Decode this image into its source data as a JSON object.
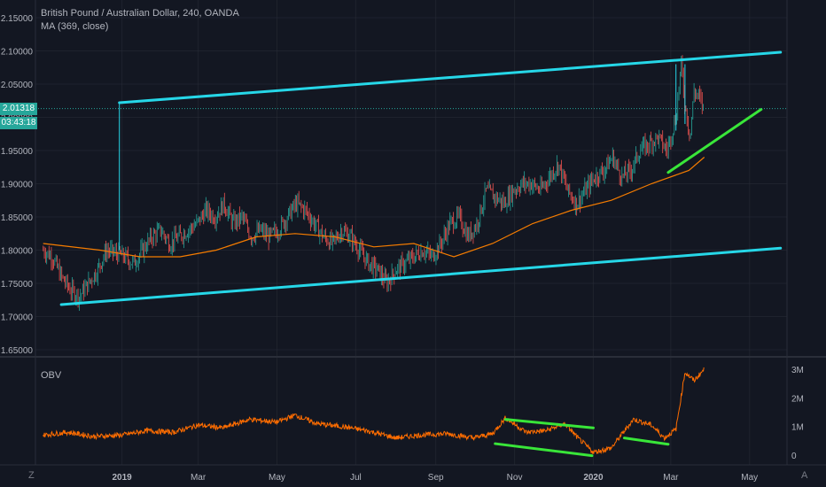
{
  "header": {
    "symbol_line": "British Pound / Australian Dollar, 240, OANDA",
    "indicator_line": "MA (369, close)",
    "obv_label": "OBV"
  },
  "badges": {
    "last_price": "2.01318",
    "countdown": "03:43:18"
  },
  "corners": {
    "left": "Z",
    "right": "A"
  },
  "colors": {
    "background": "#131722",
    "grid": "#2a2e39",
    "candle_up": "#26a69a",
    "candle_down": "#ef5350",
    "ma": "#f57c00",
    "obv": "#ff6d00",
    "channel": "#26d7e8",
    "trend": "#39e639",
    "axis_text": "#b2b5be"
  },
  "chart_data": [
    {
      "type": "candlestick",
      "title": "British Pound / Australian Dollar, 240, OANDA",
      "price_axis_ticks": [
        "2.15000",
        "2.10000",
        "2.05000",
        "2.00000",
        "1.95000",
        "1.90000",
        "1.85000",
        "1.80000",
        "1.75000",
        "1.70000",
        "1.65000"
      ],
      "ylim": [
        1.64,
        2.165
      ],
      "time_axis_ticks": [
        "2019",
        "Mar",
        "May",
        "Jul",
        "Sep",
        "Nov",
        "2020",
        "Mar",
        "May"
      ],
      "close_path": {
        "dates": [
          "2018-11-01",
          "2018-11-08",
          "2018-11-15",
          "2018-11-22",
          "2018-11-29",
          "2018-12-06",
          "2018-12-13",
          "2018-12-20",
          "2019-01-03",
          "2019-01-10",
          "2019-01-17",
          "2019-01-24",
          "2019-01-31",
          "2019-02-07",
          "2019-02-14",
          "2019-02-21",
          "2019-02-28",
          "2019-03-07",
          "2019-03-14",
          "2019-03-21",
          "2019-03-28",
          "2019-04-04",
          "2019-04-11",
          "2019-04-18",
          "2019-04-25",
          "2019-05-02",
          "2019-05-09",
          "2019-05-16",
          "2019-05-23",
          "2019-05-30",
          "2019-06-06",
          "2019-06-13",
          "2019-06-20",
          "2019-06-27",
          "2019-07-04",
          "2019-07-11",
          "2019-07-18",
          "2019-07-25",
          "2019-08-01",
          "2019-08-08",
          "2019-08-15",
          "2019-08-22",
          "2019-08-29",
          "2019-09-05",
          "2019-09-12",
          "2019-09-19",
          "2019-09-26",
          "2019-10-03",
          "2019-10-10",
          "2019-10-17",
          "2019-10-24",
          "2019-10-31",
          "2019-11-07",
          "2019-11-14",
          "2019-11-21",
          "2019-11-28",
          "2019-12-05",
          "2019-12-12",
          "2019-12-19",
          "2019-12-26",
          "2020-01-02",
          "2020-01-09",
          "2020-01-16",
          "2020-01-23",
          "2020-01-30",
          "2020-02-06",
          "2020-02-13",
          "2020-02-20",
          "2020-02-27",
          "2020-03-05",
          "2020-03-09",
          "2020-03-12",
          "2020-03-16",
          "2020-03-19",
          "2020-03-23",
          "2020-03-27"
        ],
        "close": [
          1.8,
          1.79,
          1.76,
          1.74,
          1.73,
          1.75,
          1.77,
          1.8,
          1.79,
          1.78,
          1.8,
          1.82,
          1.83,
          1.81,
          1.82,
          1.83,
          1.84,
          1.86,
          1.85,
          1.87,
          1.84,
          1.85,
          1.82,
          1.83,
          1.82,
          1.83,
          1.85,
          1.87,
          1.86,
          1.84,
          1.82,
          1.81,
          1.83,
          1.82,
          1.8,
          1.78,
          1.77,
          1.75,
          1.77,
          1.78,
          1.79,
          1.8,
          1.79,
          1.81,
          1.84,
          1.85,
          1.82,
          1.84,
          1.89,
          1.88,
          1.87,
          1.89,
          1.9,
          1.9,
          1.89,
          1.91,
          1.93,
          1.89,
          1.87,
          1.89,
          1.91,
          1.92,
          1.94,
          1.91,
          1.92,
          1.95,
          1.96,
          1.97,
          1.95,
          2.0,
          2.08,
          2.02,
          1.97,
          2.04,
          2.03,
          2.01
        ],
        "high": [
          1.81,
          1.8,
          1.78,
          1.76,
          1.75,
          1.77,
          1.79,
          1.81,
          1.81,
          1.8,
          1.82,
          1.84,
          1.85,
          1.83,
          1.84,
          1.85,
          1.87,
          1.88,
          1.87,
          1.89,
          1.87,
          1.87,
          1.84,
          1.85,
          1.84,
          1.85,
          1.87,
          1.89,
          1.88,
          1.86,
          1.84,
          1.83,
          1.85,
          1.84,
          1.82,
          1.8,
          1.79,
          1.77,
          1.79,
          1.8,
          1.81,
          1.82,
          1.81,
          1.83,
          1.86,
          1.87,
          1.85,
          1.86,
          1.91,
          1.9,
          1.89,
          1.91,
          1.92,
          1.92,
          1.91,
          1.93,
          1.95,
          1.92,
          1.89,
          1.91,
          1.93,
          1.94,
          1.97,
          1.94,
          1.94,
          1.97,
          1.98,
          2.0,
          1.98,
          2.02,
          2.08,
          2.05,
          2.0,
          2.05,
          2.05,
          2.03
        ],
        "low": [
          1.79,
          1.77,
          1.74,
          1.72,
          1.72,
          1.73,
          1.75,
          1.78,
          1.77,
          1.76,
          1.78,
          1.8,
          1.81,
          1.79,
          1.8,
          1.81,
          1.82,
          1.84,
          1.83,
          1.85,
          1.82,
          1.83,
          1.8,
          1.81,
          1.8,
          1.81,
          1.83,
          1.85,
          1.84,
          1.82,
          1.8,
          1.79,
          1.81,
          1.8,
          1.78,
          1.76,
          1.75,
          1.73,
          1.75,
          1.76,
          1.77,
          1.78,
          1.77,
          1.79,
          1.82,
          1.83,
          1.8,
          1.82,
          1.87,
          1.86,
          1.85,
          1.87,
          1.88,
          1.88,
          1.87,
          1.89,
          1.9,
          1.87,
          1.85,
          1.87,
          1.89,
          1.9,
          1.92,
          1.89,
          1.9,
          1.93,
          1.94,
          1.95,
          1.93,
          1.97,
          1.98,
          1.99,
          1.95,
          1.98,
          2.0,
          1.98
        ]
      },
      "moving_average": {
        "name": "MA (369, close)",
        "dates": [
          "2018-11-01",
          "2018-12-15",
          "2019-01-15",
          "2019-02-15",
          "2019-03-15",
          "2019-04-15",
          "2019-05-15",
          "2019-06-15",
          "2019-07-15",
          "2019-08-15",
          "2019-09-15",
          "2019-10-15",
          "2019-11-15",
          "2019-12-15",
          "2020-01-15",
          "2020-02-15",
          "2020-03-15",
          "2020-03-27"
        ],
        "values": [
          1.81,
          1.8,
          1.79,
          1.79,
          1.8,
          1.82,
          1.825,
          1.82,
          1.805,
          1.81,
          1.79,
          1.81,
          1.84,
          1.86,
          1.875,
          1.9,
          1.92,
          1.94
        ]
      },
      "annotations": [
        {
          "type": "trendline",
          "color": "channel",
          "from": [
            "2018-12-30",
            2.022
          ],
          "to": [
            "2020-05-25",
            2.098
          ]
        },
        {
          "type": "trendline",
          "color": "channel",
          "from": [
            "2018-11-15",
            1.718
          ],
          "to": [
            "2020-05-25",
            1.803
          ]
        },
        {
          "type": "trendline",
          "color": "trend",
          "from": [
            "2020-02-28",
            1.917
          ],
          "to": [
            "2020-05-10",
            2.012
          ]
        },
        {
          "type": "vertical",
          "color": "channel",
          "date": "2018-12-30",
          "from": 1.8,
          "to": 2.022
        },
        {
          "type": "vertical",
          "color": "channel",
          "date": "2020-03-05",
          "from": 1.98,
          "to": 2.08
        },
        {
          "type": "vertical",
          "color": "channel",
          "date": "2020-03-12",
          "from": 1.99,
          "to": 2.08
        }
      ]
    },
    {
      "type": "line",
      "title": "OBV",
      "yaxis_ticks": [
        "3M",
        "2M",
        "1M",
        "0"
      ],
      "ylim": [
        -0.35,
        3.3
      ],
      "series": [
        {
          "name": "OBV",
          "x": [
            "2018-11-01",
            "2018-11-20",
            "2018-12-10",
            "2019-01-01",
            "2019-01-20",
            "2019-02-10",
            "2019-03-01",
            "2019-03-20",
            "2019-04-10",
            "2019-05-01",
            "2019-05-15",
            "2019-06-01",
            "2019-06-20",
            "2019-07-10",
            "2019-08-01",
            "2019-08-20",
            "2019-09-10",
            "2019-09-30",
            "2019-10-15",
            "2019-10-25",
            "2019-11-10",
            "2019-11-25",
            "2019-12-10",
            "2019-12-20",
            "2020-01-01",
            "2020-01-15",
            "2020-02-01",
            "2020-02-15",
            "2020-02-25",
            "2020-03-05",
            "2020-03-12",
            "2020-03-19",
            "2020-03-27"
          ],
          "y": [
            0.7,
            0.8,
            0.65,
            0.7,
            0.85,
            0.8,
            1.05,
            0.95,
            1.25,
            1.15,
            1.4,
            1.1,
            1.0,
            0.85,
            0.6,
            0.7,
            0.75,
            0.6,
            0.75,
            1.3,
            0.8,
            0.85,
            1.1,
            0.6,
            0.1,
            0.25,
            1.25,
            1.05,
            0.6,
            0.9,
            2.9,
            2.6,
            3.0
          ]
        }
      ],
      "annotations": [
        {
          "type": "trendline",
          "from": [
            "2019-10-25",
            1.25
          ],
          "to": [
            "2020-01-01",
            0.95
          ]
        },
        {
          "type": "trendline",
          "from": [
            "2019-10-17",
            0.4
          ],
          "to": [
            "2019-12-31",
            -0.02
          ]
        },
        {
          "type": "trendline",
          "from": [
            "2020-01-25",
            0.6
          ],
          "to": [
            "2020-02-28",
            0.38
          ]
        }
      ]
    }
  ]
}
